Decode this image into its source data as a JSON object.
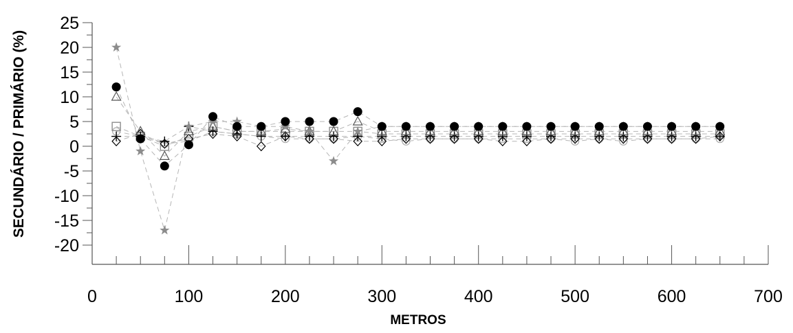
{
  "chart_data": {
    "type": "scatter",
    "title": "",
    "xlabel": "METROS",
    "ylabel": "SECUNDÁRIO / PRIMÁRIO (%)",
    "xlim": [
      0,
      700
    ],
    "ylim": [
      -20,
      25
    ],
    "x_major_ticks": [
      0,
      100,
      200,
      300,
      400,
      500,
      600,
      700
    ],
    "x_minor_step": 25,
    "y_ticks": [
      -20,
      -15,
      -10,
      -5,
      0,
      5,
      10,
      15,
      20,
      25
    ],
    "y_minor_step": 2.5,
    "grid": false,
    "legend": "none",
    "x": [
      25,
      50,
      75,
      100,
      125,
      150,
      175,
      200,
      225,
      250,
      275,
      300,
      325,
      350,
      375,
      400,
      425,
      450,
      475,
      500,
      525,
      550,
      575,
      600,
      625,
      650
    ],
    "series": [
      {
        "marker": "filled-circle",
        "color": "#000000",
        "values": [
          12,
          1.5,
          -4,
          0.3,
          6,
          4,
          4,
          5,
          5,
          5,
          7,
          4,
          4,
          4,
          4,
          4,
          4,
          4,
          4,
          4,
          4,
          4,
          4,
          4,
          4,
          4
        ]
      },
      {
        "marker": "star",
        "color": "#8c8c8c",
        "values": [
          20,
          -1,
          -17,
          4,
          5,
          5,
          4,
          4,
          3,
          -3,
          3,
          4,
          4,
          4,
          4,
          4,
          4,
          4,
          4,
          4,
          4,
          4,
          4,
          4,
          4,
          4
        ]
      },
      {
        "marker": "open-triangle",
        "color": "#555555",
        "values": [
          10,
          3,
          -2,
          3,
          4,
          3,
          3,
          3.5,
          3,
          3,
          5,
          3,
          3,
          3,
          3,
          3,
          3,
          3,
          3,
          3,
          3,
          3,
          3,
          3,
          3,
          3
        ]
      },
      {
        "marker": "open-square",
        "color": "#8c8c8c",
        "values": [
          4,
          2,
          0,
          2,
          4,
          3,
          3,
          3,
          3,
          3,
          3,
          2.5,
          2.5,
          2.5,
          2.5,
          2.5,
          2.5,
          2.5,
          2.5,
          2.5,
          2.5,
          2.5,
          2.5,
          2.5,
          2.5,
          2.5
        ]
      },
      {
        "marker": "open-circle",
        "color": "#aaaaaa",
        "values": [
          3,
          2,
          0.5,
          1,
          3,
          2.5,
          2,
          1.5,
          1.5,
          1.5,
          2,
          1.5,
          1,
          1.5,
          1.5,
          1.5,
          1.5,
          1.5,
          1.5,
          1,
          1.5,
          1,
          1.5,
          1.5,
          1.5,
          1.5
        ]
      },
      {
        "marker": "plus",
        "color": "#000000",
        "values": [
          2,
          2,
          1,
          4,
          3,
          2.5,
          2,
          2,
          2,
          2,
          2,
          2,
          2,
          2,
          2,
          2,
          2,
          2,
          2,
          2,
          2,
          2,
          2,
          2,
          2,
          2
        ]
      },
      {
        "marker": "open-diamond",
        "color": "#000000",
        "values": [
          1,
          2.5,
          0.5,
          1.5,
          2.5,
          2,
          0,
          2,
          1.5,
          1.5,
          1,
          1,
          1.5,
          1.5,
          1.5,
          1.5,
          1,
          1,
          1.5,
          1.5,
          1.5,
          1.5,
          1.5,
          1.5,
          1.5,
          2
        ]
      }
    ]
  }
}
